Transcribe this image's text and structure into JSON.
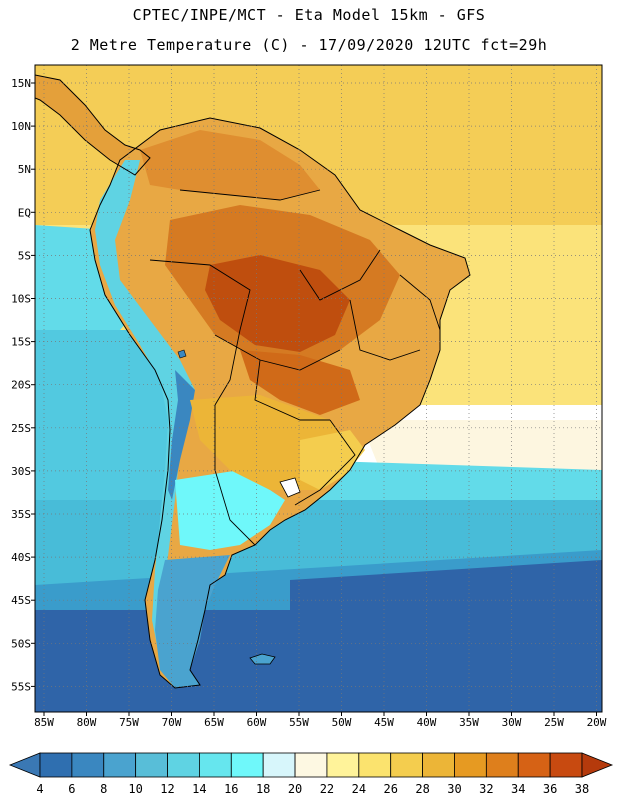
{
  "header": {
    "line1": "CPTEC/INPE/MCT -  Eta Model 15km - GFS",
    "line2": "2 Metre Temperature (C) - 17/09/2020 12UTC fct=29h"
  },
  "axes": {
    "lat_labels": [
      "15N",
      "10N",
      "5N",
      "EQ",
      "5S",
      "10S",
      "15S",
      "20S",
      "25S",
      "30S",
      "35S",
      "40S",
      "45S",
      "50S",
      "55S"
    ],
    "lon_labels": [
      "85W",
      "80W",
      "75W",
      "70W",
      "65W",
      "60W",
      "55W",
      "50W",
      "45W",
      "40W",
      "35W",
      "30W",
      "25W",
      "20W"
    ]
  },
  "colorbar": {
    "labels": [
      "4",
      "6",
      "8",
      "10",
      "12",
      "14",
      "16",
      "18",
      "20",
      "22",
      "24",
      "26",
      "28",
      "30",
      "32",
      "34",
      "36",
      "38"
    ],
    "colors": [
      "#3a78b4",
      "#2f6fb0",
      "#3a87c0",
      "#4aa3cf",
      "#58bed8",
      "#5fd3e3",
      "#66e6ee",
      "#6ff8fa",
      "#d7f6fb",
      "#fdf8e2",
      "#fff39a",
      "#fbe36e",
      "#f4cd4e",
      "#ecb537",
      "#e69a22",
      "#de7f1c",
      "#d66215",
      "#c84a10",
      "#b53a0c"
    ]
  },
  "palette": {
    "ocean_cold": "#2f64a8",
    "ocean_cool": "#44b8d5",
    "ocean_mild": "#62dbe9",
    "ocean_warm": "#fbe27a",
    "ocean_tropical": "#f4cd56",
    "land_warm": "#ecac44",
    "land_hot": "#dd8328",
    "land_very_hot": "#c4520f"
  }
}
